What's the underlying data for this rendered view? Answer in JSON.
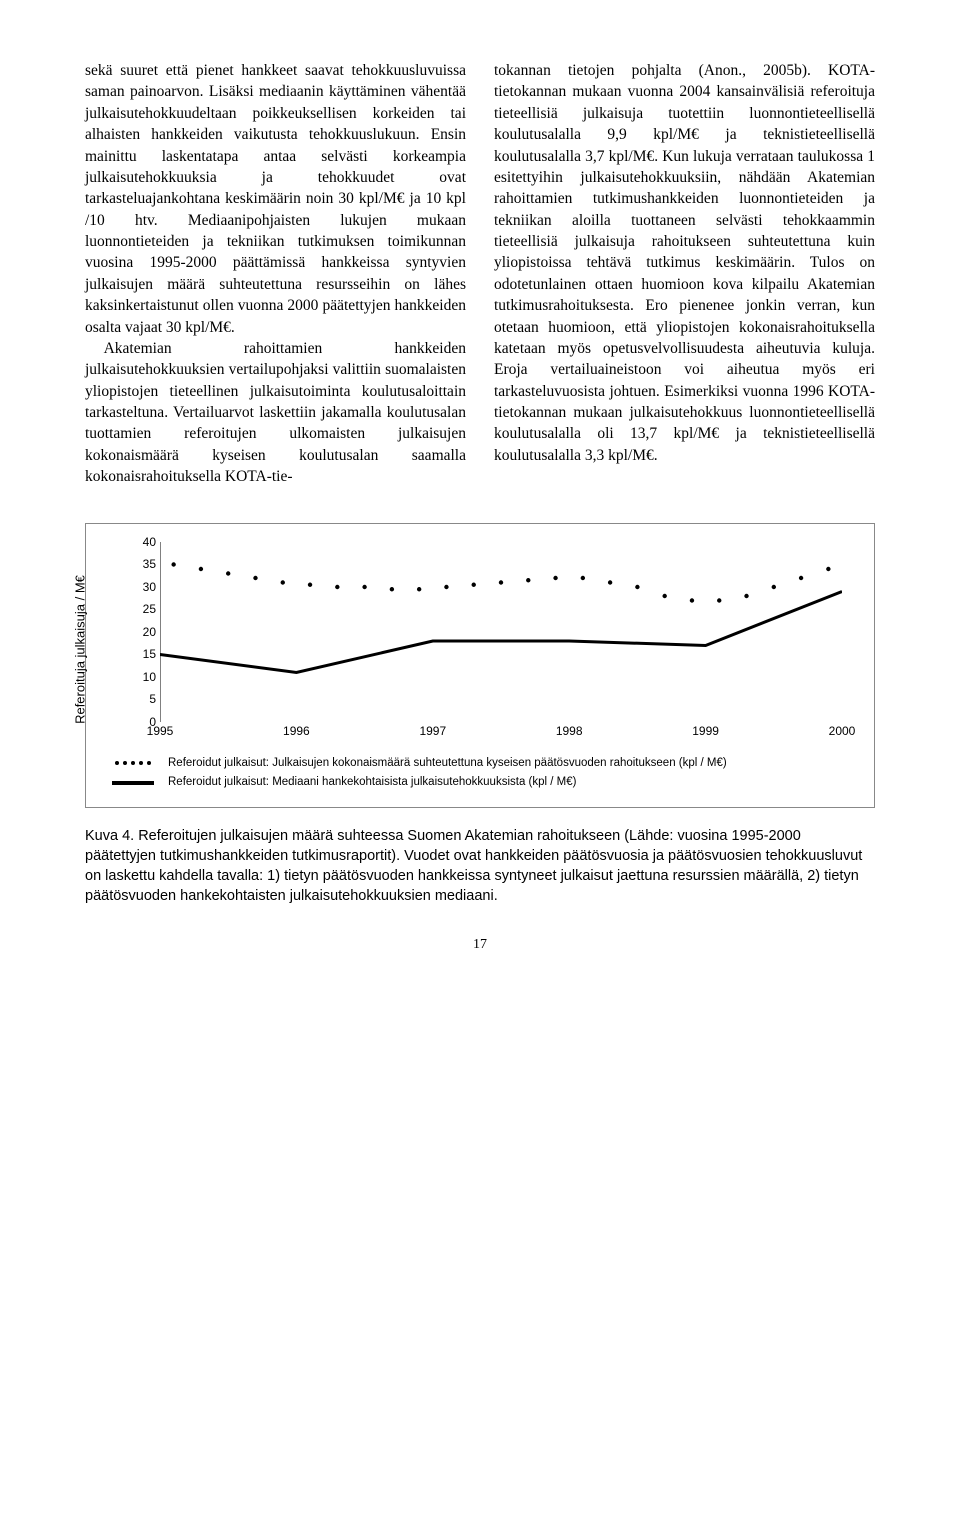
{
  "col1": {
    "p1": "sekä suuret että pienet hankkeet saavat tehokkuusluvuissa saman painoarvon. Lisäksi mediaanin käyttäminen vähentää julkaisutehokkuudeltaan poikkeuksellisen korkeiden tai alhaisten hankkeiden vaikutusta tehokkuuslukuun. Ensin mainittu laskentatapa antaa selvästi korkeampia julkaisutehokkuuksia ja tehokkuudet ovat tarkasteluajankohtana keskimäärin noin 30 kpl/M€ ja 10 kpl /10 htv. Mediaanipohjaisten lukujen mukaan luonnontieteiden ja tekniikan tutkimuksen toimikunnan vuosina 1995-2000 päättämissä hankkeissa syntyvien julkaisujen määrä suhteutettuna resursseihin on lähes kaksinkertaistunut ollen vuonna 2000 päätettyjen hankkeiden osalta vajaat 30 kpl/M€.",
    "p2": "Akatemian rahoittamien hankkeiden julkaisutehokkuuksien vertailupohjaksi valittiin suomalaisten yliopistojen tieteellinen julkaisutoiminta koulutusaloittain tarkasteltuna. Vertailuarvot laskettiin jakamalla koulutusalan tuottamien referoitujen ulkomaisten julkaisujen kokonaismäärä kyseisen koulutusalan saamalla kokonaisrahoituksella KOTA-tie-"
  },
  "col2": {
    "p1": "tokannan tietojen pohjalta (Anon., 2005b). KOTA-tietokannan mukaan vuonna 2004 kansainvälisiä referoituja tieteellisiä julkaisuja tuotettiin luonnontieteellisellä koulutusalalla 9,9 kpl/M€ ja teknistieteellisellä koulutusalalla 3,7 kpl/M€. Kun lukuja verrataan taulukossa 1 esitettyihin julkaisutehokkuuksiin, nähdään Akatemian rahoittamien tutkimushankkeiden luonnontieteiden ja tekniikan aloilla tuottaneen selvästi tehokkaammin tieteellisiä julkaisuja rahoitukseen suhteutettuna kuin yliopistoissa tehtävä tutkimus keskimäärin. Tulos on odotetunlainen ottaen huomioon kova kilpailu Akatemian tutkimusrahoituksesta. Ero pienenee jonkin verran, kun otetaan  huomioon, että yliopistojen kokonaisrahoituksella katetaan myös opetusvelvollisuudesta aiheutuvia kuluja. Eroja vertailuaineistoon voi aiheutua myös eri tarkasteluvuosista johtuen. Esimerkiksi vuonna 1996 KOTA-tietokannan mukaan julkaisutehokkuus luonnontieteellisellä koulutusalalla oli 13,7 kpl/M€ ja teknistieteellisellä koulutusalalla 3,3 kpl/M€."
  },
  "chart": {
    "type": "line",
    "y_label": "Referoituja julkaisuja / M€",
    "ylim": [
      0,
      40
    ],
    "ytick_step": 5,
    "yticks": [
      0,
      5,
      10,
      15,
      20,
      25,
      30,
      35,
      40
    ],
    "xticks": [
      "1995",
      "1996",
      "1997",
      "1998",
      "1999",
      "2000"
    ],
    "series_dotted": {
      "label": "Referoidut julkaisut: Julkaisujen kokonaismäärä suhteutettuna kyseisen päätösvuoden rahoitukseen (kpl / M€)",
      "color": "#000000",
      "x": [
        1995.1,
        1995.3,
        1995.5,
        1995.7,
        1995.9,
        1996.1,
        1996.3,
        1996.5,
        1996.7,
        1996.9,
        1997.1,
        1997.3,
        1997.5,
        1997.7,
        1997.9,
        1998.1,
        1998.3,
        1998.5,
        1998.7,
        1998.9,
        1999.1,
        1999.3,
        1999.5,
        1999.7,
        1999.9
      ],
      "y": [
        35,
        34,
        33,
        32,
        31,
        30.5,
        30,
        30,
        29.5,
        29.5,
        30,
        30.5,
        31,
        31.5,
        32,
        32,
        31,
        30,
        28,
        27,
        27,
        28,
        30,
        32,
        34
      ]
    },
    "series_solid": {
      "label": "Referoidut julkaisut: Mediaani hankekohtaisista julkaisutehokkuuksista (kpl / M€)",
      "color": "#000000",
      "line_width": 3,
      "x": [
        1995,
        1996,
        1997,
        1998,
        1999,
        2000
      ],
      "y": [
        15,
        11,
        18,
        18,
        17,
        29
      ]
    }
  },
  "caption": "Kuva 4. Referoitujen julkaisujen määrä suhteessa Suomen Akatemian rahoitukseen (Lähde: vuosina 1995-2000 päätettyjen tutkimushankkeiden tutkimusraportit). Vuodet ovat hankkeiden päätösvuosia ja päätösvuosien tehokkuusluvut on laskettu kahdella tavalla: 1) tietyn päätösvuoden hankkeissa syntyneet julkaisut jaettuna resurssien määrällä, 2) tietyn päätösvuoden hankekohtaisten julkaisutehokkuuksien mediaani.",
  "page_number": "17"
}
